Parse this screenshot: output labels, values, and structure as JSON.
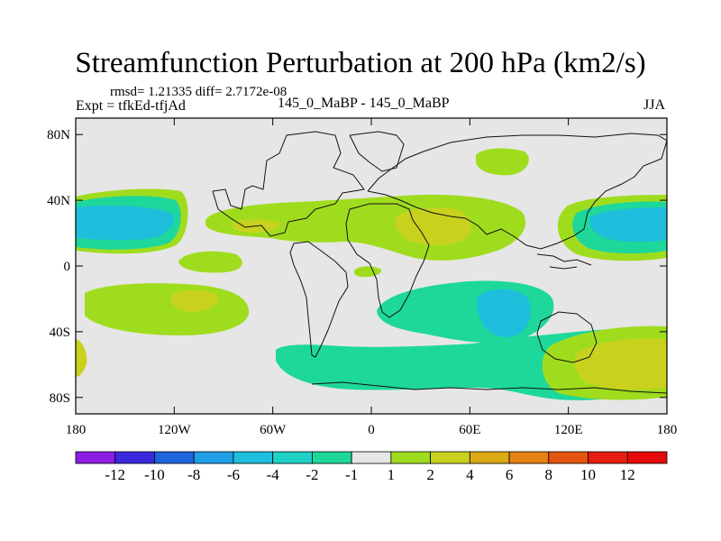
{
  "chart_data": {
    "type": "heatmap",
    "title": "Streamfunction Perturbation at 200 hPa (km2/s)",
    "stats": "rmsd= 1.21335 diff= 2.7172e-08",
    "left_label": "Expt = tfkEd-tfjAd",
    "center_label": "145_0_MaBP - 145_0_MaBP",
    "right_label": "JJA",
    "x_ticks": [
      "180",
      "120W",
      "60W",
      "0",
      "60E",
      "120E",
      "180"
    ],
    "y_ticks": [
      "80N",
      "40N",
      "0",
      "40S",
      "80S"
    ],
    "x_range": [
      -180,
      180
    ],
    "y_range": [
      -90,
      90
    ],
    "colorbar": {
      "labels": [
        "-12",
        "-10",
        "-8",
        "-6",
        "-4",
        "-2",
        "-1",
        "1",
        "2",
        "4",
        "6",
        "8",
        "10",
        "12"
      ],
      "colors": [
        "#8c1ee6",
        "#3c28dc",
        "#1e64dc",
        "#1e9ee6",
        "#1ebedc",
        "#1ed2c8",
        "#1ed79b",
        "#e6e6e6",
        "#a0dc1e",
        "#c8d21e",
        "#dcaa14",
        "#e68214",
        "#e6550f",
        "#e61e0f",
        "#e60a0a"
      ]
    },
    "regions": [
      {
        "name": "positive-north-pacific-west",
        "level": "2",
        "color": "#a0dc1e"
      },
      {
        "name": "negative-north-pacific",
        "level": "-2",
        "color": "#1ed79b"
      },
      {
        "name": "strong-negative-north-pacific",
        "level": "-4",
        "color": "#1ebedc"
      },
      {
        "name": "positive-north-atlantic-band",
        "level": "2",
        "color": "#a0dc1e"
      },
      {
        "name": "strong-positive-asia",
        "level": "4",
        "color": "#c8d21e"
      },
      {
        "name": "positive-south-pacific",
        "level": "2",
        "color": "#a0dc1e"
      },
      {
        "name": "negative-indian-ocean",
        "level": "-2",
        "color": "#1ed79b"
      },
      {
        "name": "strong-negative-indian-ocean",
        "level": "-4",
        "color": "#1ebedc"
      },
      {
        "name": "negative-southern-band",
        "level": "-2",
        "color": "#1ed79b"
      },
      {
        "name": "positive-southwest-pacific",
        "level": "4",
        "color": "#c8d21e"
      }
    ]
  }
}
